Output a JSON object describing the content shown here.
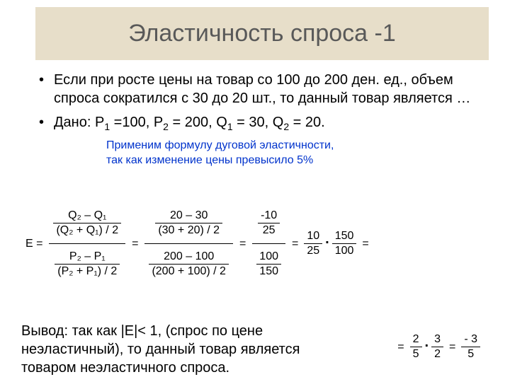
{
  "title": "Эластичность спроса -1",
  "bullets": {
    "b1": "Если при росте цены на товар со 100 до 200 ден. ед., объем спроса сократился с 30 до 20 шт., то данный товар является …",
    "b2_pre": "Дано: Р",
    "b2_p1v": " =100, Р",
    "b2_p2v": " = 200, Q",
    "b2_q1v": " = 30, Q",
    "b2_q2v": " = 20."
  },
  "note_l1": "Применим формулу дуговой эластичности,",
  "note_l2": "так как изменение цены превысило 5%",
  "E_label": "Е =",
  "sym": {
    "q2mq1": "Q₂ – Q₁",
    "q2pq1": "(Q₂ + Q₁) / 2",
    "p2mp1": "P₂ – P₁",
    "p2pp1": "(P₂ + P₁) / 2"
  },
  "step2": {
    "num_n": "20 – 30",
    "num_d": "(30 + 20) / 2",
    "den_n": "200 – 100",
    "den_d": "(200 + 100) / 2"
  },
  "step3": {
    "num_n": "-10",
    "num_d": "25",
    "den_n": "100",
    "den_d": "150"
  },
  "step4a": {
    "n": "10",
    "d": "25"
  },
  "step4b": {
    "n": "150",
    "d": "100"
  },
  "step5a": {
    "n": "2",
    "d": "5"
  },
  "step5b": {
    "n": "3",
    "d": "2"
  },
  "step6": {
    "n": "- 3",
    "d": "5"
  },
  "conclusion": "Вывод: так как |Е|< 1, (спрос по цене неэластичный), то данный товар является товаром неэластичного спроса."
}
